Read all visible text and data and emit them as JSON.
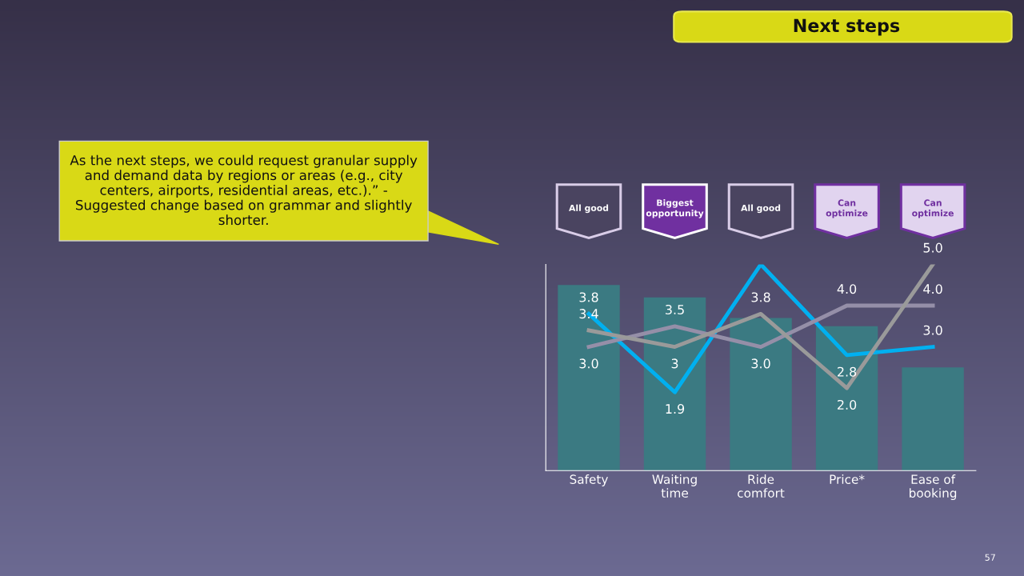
{
  "chart_data": {
    "type": "bar",
    "categories": [
      "Safety",
      "Waiting\ntime",
      "Ride\ncomfort",
      "Price*",
      "Ease of\nbooking"
    ],
    "series": [
      {
        "color": "#3b7a82",
        "values": [
          4.5,
          4.2,
          3.7,
          3.5,
          2.5
        ]
      },
      {
        "type": "line",
        "color": "#00b0f0",
        "values": [
          3.8,
          1.9,
          5.0,
          2.8,
          3.0
        ],
        "value_labels": [
          "3.8",
          "1.9",
          null,
          "2.8",
          "3.0"
        ]
      },
      {
        "type": "line",
        "color": "#958fa8",
        "values": [
          3.0,
          3.5,
          3.0,
          4.0,
          4.0
        ],
        "value_labels": [
          "3.0",
          "3.5",
          "3.0",
          "4.0",
          "4.0"
        ]
      },
      {
        "type": "line",
        "color": "#9a9a9a",
        "values": [
          3.4,
          3,
          3.8,
          2.0,
          5.0
        ],
        "value_labels": [
          "3.4",
          "3",
          "3.8",
          "2.0",
          "5.0"
        ]
      }
    ],
    "ylim": [
      0,
      5
    ],
    "tick_labels": "x",
    "grid": false,
    "legend": false,
    "marker": "none",
    "line_style": "solid",
    "annotations": [
      "Next steps",
      "As the next steps, we could request granular supply and demand data by regions or areas (e.g., city centers, airports, residential areas, etc.).” - Suggested change based on grammar and slightly shorter.",
      "57",
      "All good",
      "Biggest opportunity",
      "All good",
      "Can optimize",
      "Can optimize"
    ]
  }
}
